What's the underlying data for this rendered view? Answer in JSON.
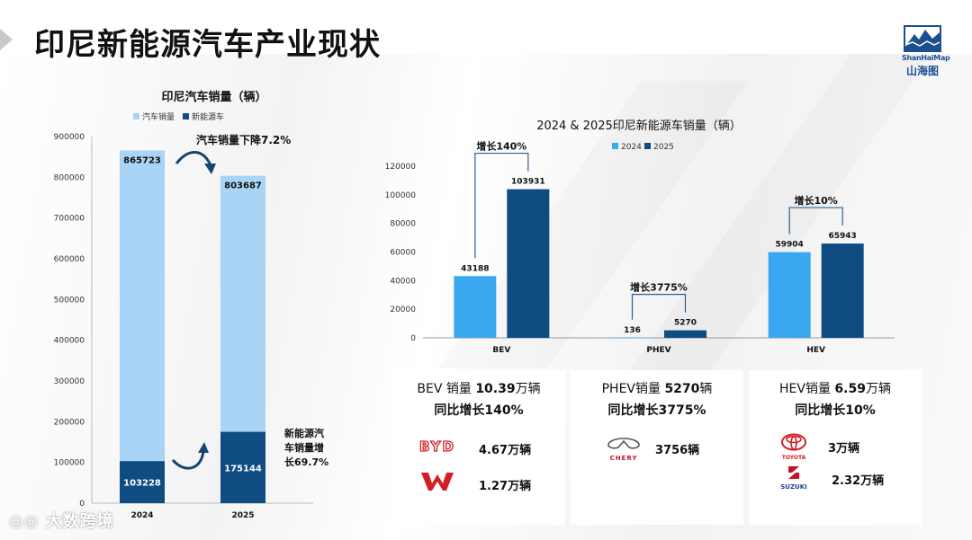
{
  "page": {
    "title": "印尼新能源汽车产业现状",
    "logo_en": "ShanHaiMap",
    "logo_cn": "山海图",
    "watermark": "大数跨境"
  },
  "left_chart": {
    "title": "印尼汽车销量（辆）",
    "legend": [
      "汽车销量",
      "新能源车"
    ],
    "annot_total": "汽车销量下降7.2%",
    "annot_nev": [
      "新能源汽",
      "车销量增",
      "长69.7%"
    ],
    "colors": {
      "total": "#a9d4f5",
      "nev": "#0e4c82"
    }
  },
  "right_chart": {
    "title": "2024 & 2025印尼新能源车销量（辆）",
    "legend": [
      "2024",
      "2025"
    ],
    "growth_labels": [
      "增长140%",
      "增长3775%",
      "增长10%"
    ],
    "colors": {
      "y2024": "#3aa8f0",
      "y2025": "#0e4c82"
    }
  },
  "chart_data": [
    {
      "type": "bar",
      "title": "印尼汽车销量（辆）",
      "categories": [
        "2024",
        "2025"
      ],
      "series": [
        {
          "name": "汽车销量",
          "values": [
            865723,
            803687
          ]
        },
        {
          "name": "新能源车",
          "values": [
            103228,
            175144
          ]
        }
      ],
      "ylim": [
        0,
        900000
      ],
      "yticks": [
        0,
        100000,
        200000,
        300000,
        400000,
        500000,
        600000,
        700000,
        800000,
        900000
      ],
      "grid": false,
      "legend": "top"
    },
    {
      "type": "bar",
      "title": "2024 & 2025印尼新能源车销量（辆）",
      "categories": [
        "BEV",
        "PHEV",
        "HEV"
      ],
      "series": [
        {
          "name": "2024",
          "values": [
            43188,
            136,
            59904
          ]
        },
        {
          "name": "2025",
          "values": [
            103931,
            5270,
            65943
          ]
        }
      ],
      "ylim": [
        0,
        120000
      ],
      "yticks": [
        0,
        20000,
        40000,
        60000,
        80000,
        100000,
        120000
      ],
      "grid": false,
      "legend": "top"
    }
  ],
  "cards": [
    {
      "line1_pre": "BEV 销量 ",
      "line1_bold": "10.39",
      "line1_post": "万辆",
      "line2": "同比增长140%",
      "brands": [
        {
          "logo": "byd-logo",
          "name": "BYD",
          "value": "4.67万辆"
        },
        {
          "logo": "wuling-logo",
          "name": "",
          "value": "1.27万辆"
        }
      ]
    },
    {
      "line1_pre": "PHEV销量 ",
      "line1_bold": "5270",
      "line1_post": "辆",
      "line2": "同比增长3775%",
      "brands": [
        {
          "logo": "chery-logo",
          "name": "CHERY",
          "value": "3756辆"
        }
      ]
    },
    {
      "line1_pre": "HEV销量 ",
      "line1_bold": "6.59",
      "line1_post": "万辆",
      "line2": "同比增长10%",
      "brands": [
        {
          "logo": "toyota-logo",
          "name": "TOYOTA",
          "value": "3万辆"
        },
        {
          "logo": "suzuki-logo",
          "name": "SUZUKI",
          "value": "2.32万辆"
        }
      ]
    }
  ]
}
